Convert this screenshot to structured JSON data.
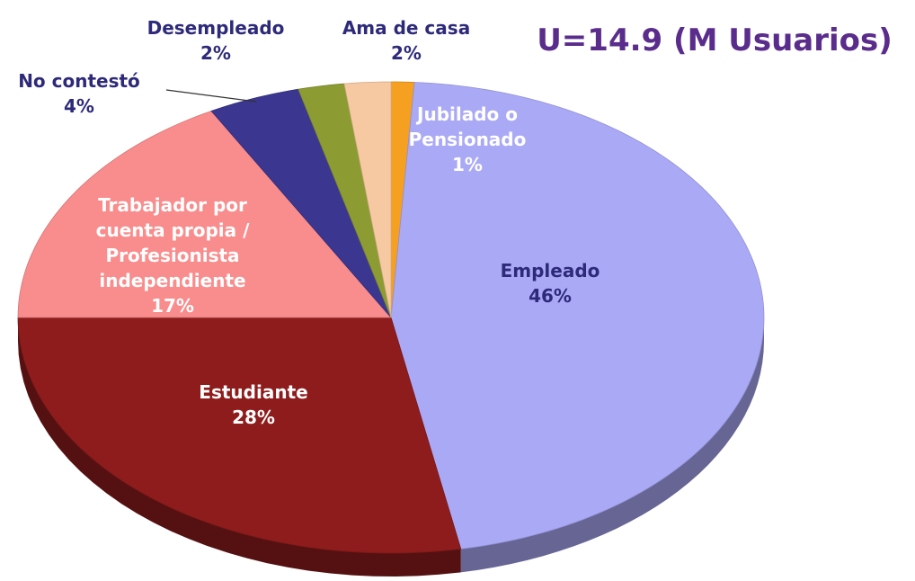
{
  "chart_data": {
    "type": "pie3d",
    "title": "U=14.9 (M Usuarios)",
    "categories": [
      "Jubilado o Pensionado",
      "Empleado",
      "Estudiante",
      "Trabajador por cuenta propia / Profesionista independiente",
      "No contestó",
      "Desempleado",
      "Ama de casa"
    ],
    "values": [
      1,
      46,
      28,
      17,
      4,
      2,
      2
    ],
    "value_labels": [
      "1%",
      "46%",
      "28%",
      "17%",
      "4%",
      "2%",
      "2%"
    ],
    "colors": [
      "#f5a020",
      "#aaa9f6",
      "#8e1c1c",
      "#f98c8c",
      "#3b368f",
      "#8c9b32",
      "#f7c9a2"
    ]
  }
}
